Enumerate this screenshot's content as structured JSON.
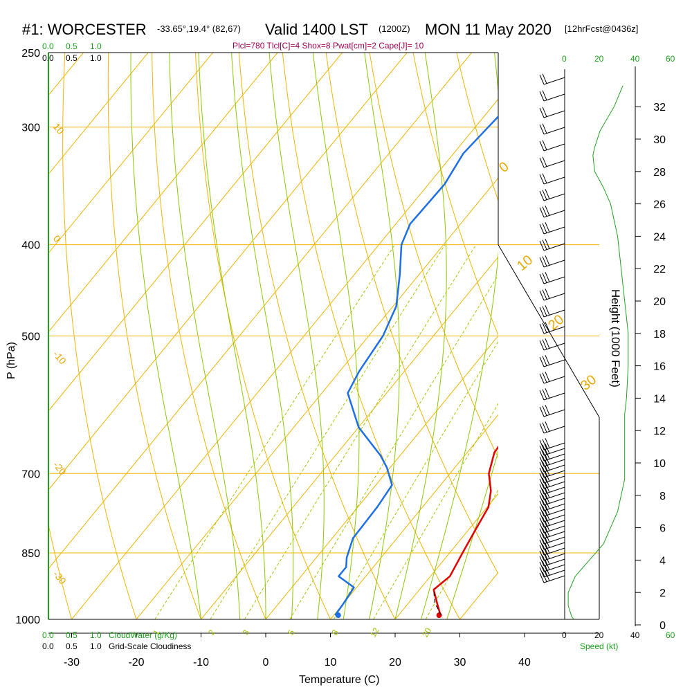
{
  "title": {
    "station": "#1: WORCESTER",
    "location": "-33.65°,19.4° (82,67)",
    "valid": "Valid 1400 LST",
    "utc": "(1200Z)",
    "date": "MON 11 May 2020",
    "forecast": "[12hrFcst@0436z]"
  },
  "params_line": "Plcl=780 Tlcl[C]=4 Shox=8 Pwat[cm]=2 Cape[J]= 10",
  "cloud_scale": {
    "top_green": [
      "0.0",
      "0.5",
      "1.0"
    ],
    "top_black": [
      "0.0",
      "0.5",
      "1.0"
    ],
    "bottom_green": [
      "0.0",
      "0.5",
      "1.0"
    ],
    "bottom_green_label": "CloudWater (g/Kg)",
    "bottom_black": [
      "0.0",
      "0.5",
      "1.0"
    ],
    "bottom_black_label": "Grid-Scale Cloudiness"
  },
  "wind_speed_scale": {
    "top_green": [
      "0",
      "20",
      "40",
      "60"
    ],
    "bottom_black": [
      "0",
      "20",
      "40"
    ],
    "bottom_green": [
      "0",
      "20",
      "40",
      "60"
    ],
    "label": "Speed (kt)"
  },
  "colors": {
    "temperature": "#e00000",
    "dewpoint": "#1e6ee6",
    "isotherm": "#f0b400",
    "dry_adiabat": "#f0b400",
    "moist_adiabat": "#8cc800",
    "mixing_ratio": "#a0c800",
    "speed_profile": "#20a020"
  },
  "chart_data": {
    "type": "line",
    "subtype": "skew-T log-P sounding",
    "xlabel": "Temperature (C)",
    "ylabel": "P (hPa)",
    "y2label": "Height (1000 Feet)",
    "x_ticks": [
      -30,
      -20,
      -10,
      0,
      10,
      20,
      30,
      40
    ],
    "p_ticks": [
      250,
      300,
      400,
      500,
      700,
      850,
      1000
    ],
    "height_ticks": [
      0,
      2,
      4,
      6,
      8,
      10,
      12,
      14,
      16,
      18,
      20,
      22,
      24,
      26,
      28,
      30,
      32
    ],
    "isotherm_labels": [
      "10",
      "0",
      "-10",
      "-20",
      "-30"
    ],
    "isotherm_labels_right": [
      "0",
      "10",
      "20",
      "30"
    ],
    "mixing_ratio_labels": [
      "1",
      "2",
      "3",
      "5",
      "8",
      "12",
      "20"
    ],
    "surface_temperature": 26.8,
    "surface_dewpoint": 11.2,
    "series": [
      {
        "name": "Temperature",
        "points": [
          [
            26.5,
            990
          ],
          [
            24.5,
            962
          ],
          [
            22.2,
            930
          ],
          [
            23.0,
            900
          ],
          [
            22.0,
            850
          ],
          [
            21.2,
            810
          ],
          [
            20.2,
            760
          ],
          [
            18.5,
            730
          ],
          [
            16.0,
            700
          ],
          [
            14.2,
            665
          ],
          [
            13.8,
            630
          ],
          [
            13.9,
            600
          ],
          [
            14.1,
            575
          ],
          [
            13.0,
            545
          ],
          [
            10.3,
            500
          ],
          [
            7.7,
            450
          ],
          [
            5.1,
            400
          ],
          [
            2.8,
            360
          ],
          [
            1.0,
            330
          ],
          [
            -1.5,
            300
          ],
          [
            -4.5,
            272
          ],
          [
            -6.8,
            255
          ]
        ]
      },
      {
        "name": "Dewpoint",
        "points": [
          [
            10.2,
            990
          ],
          [
            10.0,
            960
          ],
          [
            9.6,
            925
          ],
          [
            5.8,
            900
          ],
          [
            5.8,
            880
          ],
          [
            4.7,
            860
          ],
          [
            3.2,
            820
          ],
          [
            3.0,
            760
          ],
          [
            2.5,
            720
          ],
          [
            -0.5,
            690
          ],
          [
            -3.0,
            670
          ],
          [
            -10.0,
            625
          ],
          [
            -16.0,
            575
          ],
          [
            -17.0,
            545
          ],
          [
            -17.8,
            500
          ],
          [
            -19.5,
            465
          ],
          [
            -23.0,
            430
          ],
          [
            -26.5,
            400
          ],
          [
            -27.8,
            380
          ],
          [
            -27.5,
            345
          ],
          [
            -28.5,
            320
          ],
          [
            -28.0,
            300
          ],
          [
            -27.5,
            282
          ],
          [
            -27.0,
            258
          ]
        ]
      },
      {
        "name": "Wind speed",
        "points": [
          [
            8,
            0.0
          ],
          [
            4,
            0.5
          ],
          [
            2,
            1.2
          ],
          [
            2,
            2.0
          ],
          [
            4,
            2.5
          ],
          [
            6,
            3.0
          ],
          [
            10,
            3.5
          ],
          [
            14,
            4.0
          ],
          [
            18,
            4.5
          ],
          [
            22,
            5.0
          ],
          [
            26,
            6.0
          ],
          [
            30,
            7.0
          ],
          [
            32,
            8.0
          ],
          [
            34,
            9.0
          ],
          [
            34,
            10.0
          ],
          [
            34,
            11.0
          ],
          [
            34,
            12.0
          ],
          [
            34,
            13.0
          ],
          [
            35,
            14.0
          ],
          [
            36,
            16.0
          ],
          [
            36,
            18.0
          ],
          [
            34,
            20.0
          ],
          [
            32,
            22.0
          ],
          [
            30,
            24.0
          ],
          [
            28,
            25.0
          ],
          [
            26,
            26.0
          ],
          [
            22,
            27.0
          ],
          [
            17,
            28.0
          ],
          [
            16,
            29.0
          ],
          [
            17,
            29.5
          ],
          [
            20,
            30.5
          ],
          [
            28,
            32.0
          ],
          [
            33,
            33.3
          ]
        ]
      }
    ]
  }
}
